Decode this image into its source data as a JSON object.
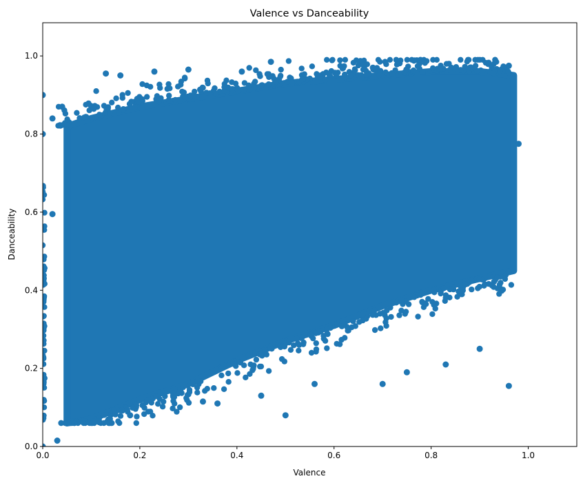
{
  "chart_data": {
    "type": "scatter",
    "title": "Valence vs Danceability",
    "xlabel": "Valence",
    "ylabel": "Danceability",
    "xlim": [
      0,
      1.1
    ],
    "ylim": [
      0,
      1.085
    ],
    "xticks": [
      0.0,
      0.2,
      0.4,
      0.6,
      0.8,
      1.0
    ],
    "xtick_labels": [
      "0.0",
      "0.2",
      "0.4",
      "0.6",
      "0.8",
      "1.0"
    ],
    "yticks": [
      0.0,
      0.2,
      0.4,
      0.6,
      0.8,
      1.0
    ],
    "ytick_labels": [
      "0.0",
      "0.2",
      "0.4",
      "0.6",
      "0.8",
      "1.0"
    ],
    "grid": false,
    "legend": "none",
    "marker_color": "#1f77b4",
    "series": [
      {
        "points_description_trend": "positive",
        "outliers": [
          {
            "x": 0.0,
            "y": 0.0
          },
          {
            "x": 0.0,
            "y": 0.9
          },
          {
            "x": 0.0,
            "y": 0.8
          },
          {
            "x": 0.03,
            "y": 0.015
          },
          {
            "x": 0.02,
            "y": 0.84
          },
          {
            "x": 0.04,
            "y": 0.87
          },
          {
            "x": 0.13,
            "y": 0.955
          },
          {
            "x": 0.16,
            "y": 0.95
          },
          {
            "x": 0.23,
            "y": 0.96
          },
          {
            "x": 0.3,
            "y": 0.965
          },
          {
            "x": 0.41,
            "y": 0.96
          },
          {
            "x": 0.47,
            "y": 0.985
          },
          {
            "x": 0.68,
            "y": 0.97
          },
          {
            "x": 0.88,
            "y": 0.97
          },
          {
            "x": 0.96,
            "y": 0.975
          },
          {
            "x": 0.98,
            "y": 0.775
          },
          {
            "x": 0.96,
            "y": 0.155
          },
          {
            "x": 0.83,
            "y": 0.21
          },
          {
            "x": 0.9,
            "y": 0.25
          },
          {
            "x": 0.75,
            "y": 0.19
          },
          {
            "x": 0.7,
            "y": 0.16
          },
          {
            "x": 0.56,
            "y": 0.16
          },
          {
            "x": 0.5,
            "y": 0.08
          },
          {
            "x": 0.45,
            "y": 0.13
          },
          {
            "x": 0.36,
            "y": 0.11
          },
          {
            "x": 0.33,
            "y": 0.115
          },
          {
            "x": 0.18,
            "y": 0.08
          },
          {
            "x": 0.02,
            "y": 0.595
          }
        ],
        "density_band": [
          {
            "x": 0.05,
            "y_low": 0.06,
            "y_high": 0.82
          },
          {
            "x": 0.1,
            "y_low": 0.07,
            "y_high": 0.84
          },
          {
            "x": 0.2,
            "y_low": 0.12,
            "y_high": 0.87
          },
          {
            "x": 0.3,
            "y_low": 0.16,
            "y_high": 0.89
          },
          {
            "x": 0.4,
            "y_low": 0.22,
            "y_high": 0.91
          },
          {
            "x": 0.5,
            "y_low": 0.27,
            "y_high": 0.93
          },
          {
            "x": 0.6,
            "y_low": 0.31,
            "y_high": 0.94
          },
          {
            "x": 0.7,
            "y_low": 0.36,
            "y_high": 0.95
          },
          {
            "x": 0.8,
            "y_low": 0.4,
            "y_high": 0.96
          },
          {
            "x": 0.9,
            "y_low": 0.43,
            "y_high": 0.96
          },
          {
            "x": 0.97,
            "y_low": 0.45,
            "y_high": 0.95
          }
        ]
      }
    ]
  }
}
